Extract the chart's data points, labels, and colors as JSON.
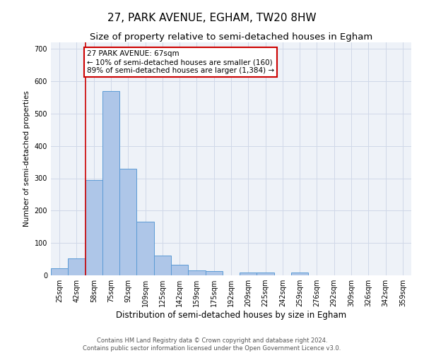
{
  "title": "27, PARK AVENUE, EGHAM, TW20 8HW",
  "subtitle": "Size of property relative to semi-detached houses in Egham",
  "xlabel": "Distribution of semi-detached houses by size in Egham",
  "ylabel": "Number of semi-detached properties",
  "categories": [
    "25sqm",
    "42sqm",
    "58sqm",
    "75sqm",
    "92sqm",
    "109sqm",
    "125sqm",
    "142sqm",
    "159sqm",
    "175sqm",
    "192sqm",
    "209sqm",
    "225sqm",
    "242sqm",
    "259sqm",
    "276sqm",
    "292sqm",
    "309sqm",
    "326sqm",
    "342sqm",
    "359sqm"
  ],
  "values": [
    22,
    52,
    295,
    570,
    330,
    165,
    62,
    32,
    16,
    14,
    0,
    8,
    8,
    0,
    8,
    0,
    0,
    0,
    0,
    0,
    0
  ],
  "bar_color": "#aec6e8",
  "bar_edge_color": "#5b9bd5",
  "grid_color": "#d0d8e8",
  "background_color": "#eef2f8",
  "annotation_line1": "27 PARK AVENUE: 67sqm",
  "annotation_line2": "← 10% of semi-detached houses are smaller (160)",
  "annotation_line3": "89% of semi-detached houses are larger (1,384) →",
  "vline_x": 1.5,
  "vline_color": "#cc0000",
  "annotation_box_edge_color": "#cc0000",
  "footer_text": "Contains HM Land Registry data © Crown copyright and database right 2024.\nContains public sector information licensed under the Open Government Licence v3.0.",
  "ylim": [
    0,
    720
  ],
  "title_fontsize": 11,
  "subtitle_fontsize": 9.5,
  "xlabel_fontsize": 8.5,
  "ylabel_fontsize": 7.5,
  "tick_fontsize": 7,
  "annotation_fontsize": 7.5,
  "footer_fontsize": 6
}
